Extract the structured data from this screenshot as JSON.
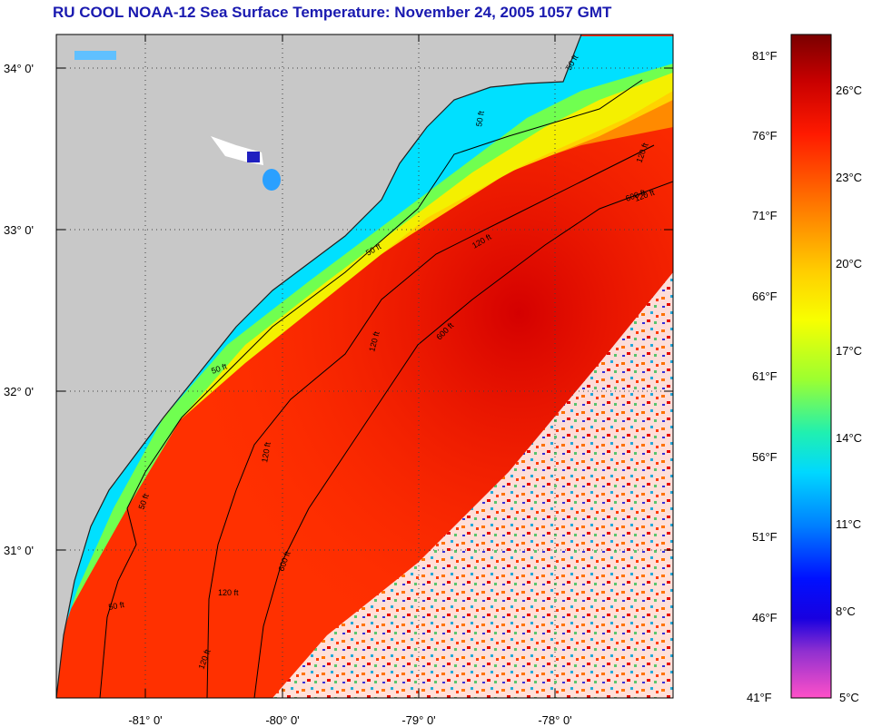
{
  "title": "RU COOL  NOAA-12  Sea Surface Temperature:  November 24, 2005 1057 GMT",
  "map": {
    "lat_labels": [
      "34° 0'",
      "33° 0'",
      "32° 0'",
      "31° 0'"
    ],
    "lon_labels": [
      "-81° 0'",
      "-80° 0'",
      "-79° 0'",
      "-78° 0'"
    ],
    "contours": [
      {
        "label": "50 ft",
        "copies": [
          "50 ft",
          "50 ft",
          "50 ft",
          "50 ft",
          "50 ft",
          "50 ft"
        ]
      },
      {
        "label": "120 ft",
        "copies": [
          "120 ft",
          "120 ft",
          "120 ft",
          "120 ft",
          "120 ft",
          "120 ft",
          "120 ft"
        ]
      },
      {
        "label": "600 ft",
        "copies": [
          "600 ft",
          "600 ft",
          "600 ft"
        ]
      }
    ]
  },
  "colorbar": {
    "fahrenheit": [
      "81°F",
      "76°F",
      "71°F",
      "66°F",
      "61°F",
      "56°F",
      "51°F",
      "46°F",
      "41°F"
    ],
    "celsius": [
      "26°C",
      "23°C",
      "20°C",
      "17°C",
      "14°C",
      "11°C",
      "8°C",
      "5°C"
    ]
  },
  "colors": {
    "title": "#1a1ab0",
    "land": "#c8c8c8",
    "cloud": "#ffffff"
  }
}
